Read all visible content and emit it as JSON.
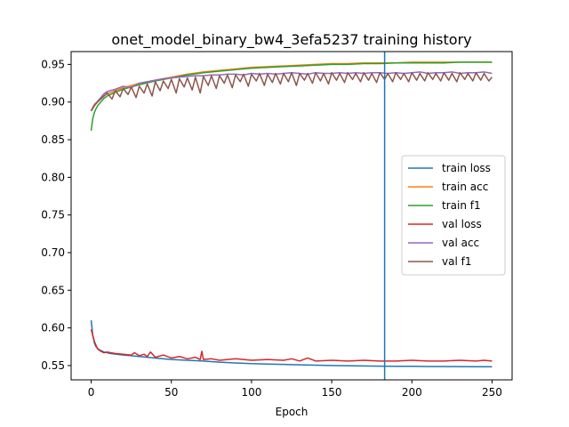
{
  "chart_data": {
    "type": "line",
    "title": "onet_model_binary_bw4_3efa5237 training history",
    "xlabel": "Epoch",
    "ylabel": "",
    "xlim": [
      -12.5,
      262.5
    ],
    "ylim": [
      0.531,
      0.967
    ],
    "xticks": [
      0,
      50,
      100,
      150,
      200,
      250
    ],
    "xtick_labels": [
      "0",
      "50",
      "100",
      "150",
      "200",
      "250"
    ],
    "yticks": [
      0.55,
      0.6,
      0.65,
      0.7,
      0.75,
      0.8,
      0.85,
      0.9,
      0.95
    ],
    "ytick_labels": [
      "0.55",
      "0.60",
      "0.65",
      "0.70",
      "0.75",
      "0.80",
      "0.85",
      "0.90",
      "0.95"
    ],
    "grid": false,
    "legend_position": "center-right",
    "vline": {
      "x": 183,
      "color": "#1f77b4"
    },
    "series": [
      {
        "name": "train loss",
        "color": "#1f77b4",
        "x": [
          0,
          1,
          2,
          3,
          5,
          8,
          12,
          16,
          20,
          25,
          30,
          40,
          50,
          60,
          70,
          80,
          90,
          100,
          110,
          120,
          130,
          140,
          150,
          160,
          170,
          180,
          190,
          200,
          210,
          220,
          230,
          240,
          250
        ],
        "y": [
          0.61,
          0.59,
          0.58,
          0.575,
          0.571,
          0.568,
          0.566,
          0.565,
          0.564,
          0.563,
          0.562,
          0.56,
          0.558,
          0.557,
          0.556,
          0.5545,
          0.5535,
          0.5525,
          0.552,
          0.5515,
          0.551,
          0.5505,
          0.55,
          0.5498,
          0.5495,
          0.5492,
          0.549,
          0.549,
          0.5488,
          0.5487,
          0.5486,
          0.5485,
          0.5485
        ]
      },
      {
        "name": "train acc",
        "color": "#ff7f0e",
        "x": [
          0,
          1,
          2,
          4,
          6,
          8,
          10,
          15,
          20,
          25,
          30,
          40,
          50,
          60,
          70,
          80,
          90,
          100,
          110,
          120,
          130,
          140,
          150,
          160,
          170,
          180,
          190,
          200,
          210,
          220,
          230,
          240,
          250
        ],
        "y": [
          0.888,
          0.893,
          0.897,
          0.901,
          0.905,
          0.908,
          0.911,
          0.915,
          0.919,
          0.922,
          0.925,
          0.929,
          0.933,
          0.937,
          0.94,
          0.942,
          0.944,
          0.946,
          0.947,
          0.948,
          0.949,
          0.95,
          0.951,
          0.951,
          0.952,
          0.952,
          0.952,
          0.953,
          0.953,
          0.953,
          0.953,
          0.953,
          0.953
        ]
      },
      {
        "name": "train f1",
        "color": "#2ca02c",
        "x": [
          0,
          1,
          2,
          3,
          4,
          6,
          8,
          10,
          15,
          20,
          25,
          30,
          40,
          50,
          60,
          70,
          80,
          90,
          100,
          110,
          120,
          130,
          140,
          150,
          160,
          170,
          180,
          190,
          200,
          210,
          220,
          230,
          240,
          250
        ],
        "y": [
          0.862,
          0.878,
          0.886,
          0.891,
          0.895,
          0.9,
          0.905,
          0.908,
          0.913,
          0.917,
          0.92,
          0.923,
          0.928,
          0.932,
          0.936,
          0.939,
          0.941,
          0.943,
          0.945,
          0.946,
          0.947,
          0.948,
          0.949,
          0.95,
          0.95,
          0.951,
          0.951,
          0.952,
          0.952,
          0.952,
          0.952,
          0.953,
          0.953,
          0.953
        ]
      },
      {
        "name": "val loss",
        "color": "#d62728",
        "x": [
          0,
          2,
          4,
          6,
          8,
          10,
          15,
          20,
          25,
          27,
          30,
          33,
          35,
          37,
          40,
          45,
          50,
          55,
          60,
          65,
          68,
          69,
          70,
          75,
          80,
          90,
          100,
          110,
          120,
          125,
          130,
          135,
          140,
          150,
          160,
          170,
          180,
          190,
          200,
          210,
          220,
          230,
          240,
          245,
          250
        ],
        "y": [
          0.598,
          0.582,
          0.572,
          0.569,
          0.567,
          0.568,
          0.566,
          0.565,
          0.564,
          0.567,
          0.563,
          0.565,
          0.562,
          0.568,
          0.561,
          0.564,
          0.56,
          0.562,
          0.559,
          0.561,
          0.558,
          0.569,
          0.558,
          0.559,
          0.557,
          0.559,
          0.557,
          0.558,
          0.557,
          0.559,
          0.556,
          0.56,
          0.556,
          0.557,
          0.556,
          0.557,
          0.556,
          0.556,
          0.557,
          0.556,
          0.556,
          0.557,
          0.556,
          0.557,
          0.556
        ]
      },
      {
        "name": "val acc",
        "color": "#9467bd",
        "x": [
          0,
          2,
          4,
          6,
          8,
          10,
          15,
          20,
          25,
          30,
          35,
          40,
          45,
          50,
          55,
          60,
          65,
          70,
          75,
          80,
          85,
          90,
          95,
          100,
          105,
          110,
          115,
          120,
          125,
          130,
          135,
          140,
          145,
          150,
          155,
          160,
          165,
          170,
          175,
          180,
          185,
          190,
          195,
          200,
          205,
          210,
          215,
          220,
          225,
          230,
          235,
          240,
          245,
          250
        ],
        "y": [
          0.889,
          0.896,
          0.901,
          0.906,
          0.911,
          0.914,
          0.917,
          0.921,
          0.919,
          0.925,
          0.927,
          0.929,
          0.931,
          0.932,
          0.933,
          0.934,
          0.935,
          0.935,
          0.936,
          0.936,
          0.937,
          0.937,
          0.936,
          0.938,
          0.937,
          0.938,
          0.937,
          0.938,
          0.939,
          0.938,
          0.937,
          0.939,
          0.938,
          0.938,
          0.939,
          0.938,
          0.939,
          0.938,
          0.939,
          0.939,
          0.938,
          0.939,
          0.938,
          0.939,
          0.94,
          0.938,
          0.939,
          0.939,
          0.94,
          0.938,
          0.939,
          0.939,
          0.94,
          0.938
        ]
      },
      {
        "name": "val f1",
        "color": "#8c564b",
        "x": [
          0,
          2,
          4,
          6,
          8,
          10,
          13,
          15,
          18,
          20,
          23,
          25,
          28,
          30,
          33,
          35,
          38,
          40,
          43,
          45,
          48,
          50,
          53,
          55,
          58,
          60,
          63,
          65,
          68,
          70,
          73,
          75,
          78,
          80,
          83,
          85,
          88,
          90,
          93,
          95,
          98,
          100,
          103,
          105,
          108,
          110,
          113,
          115,
          118,
          120,
          123,
          125,
          128,
          130,
          133,
          135,
          138,
          140,
          143,
          145,
          148,
          150,
          153,
          155,
          158,
          160,
          163,
          165,
          168,
          170,
          173,
          175,
          178,
          180,
          183,
          185,
          188,
          190,
          193,
          195,
          198,
          200,
          203,
          205,
          208,
          210,
          213,
          215,
          218,
          220,
          223,
          225,
          228,
          230,
          233,
          235,
          238,
          240,
          243,
          245,
          248,
          250
        ],
        "y": [
          0.888,
          0.895,
          0.9,
          0.904,
          0.908,
          0.912,
          0.904,
          0.915,
          0.907,
          0.918,
          0.91,
          0.92,
          0.906,
          0.921,
          0.912,
          0.924,
          0.908,
          0.927,
          0.915,
          0.928,
          0.918,
          0.93,
          0.912,
          0.931,
          0.92,
          0.932,
          0.916,
          0.933,
          0.912,
          0.934,
          0.922,
          0.935,
          0.918,
          0.935,
          0.925,
          0.936,
          0.919,
          0.936,
          0.927,
          0.937,
          0.921,
          0.937,
          0.928,
          0.938,
          0.922,
          0.937,
          0.926,
          0.938,
          0.924,
          0.938,
          0.927,
          0.939,
          0.922,
          0.938,
          0.929,
          0.938,
          0.925,
          0.939,
          0.928,
          0.938,
          0.924,
          0.939,
          0.929,
          0.938,
          0.926,
          0.939,
          0.93,
          0.938,
          0.927,
          0.939,
          0.929,
          0.938,
          0.926,
          0.939,
          0.93,
          0.938,
          0.927,
          0.939,
          0.93,
          0.938,
          0.927,
          0.939,
          0.929,
          0.938,
          0.928,
          0.939,
          0.93,
          0.938,
          0.928,
          0.939,
          0.929,
          0.938,
          0.927,
          0.939,
          0.93,
          0.938,
          0.928,
          0.939,
          0.929,
          0.938,
          0.928,
          0.933
        ]
      }
    ]
  }
}
